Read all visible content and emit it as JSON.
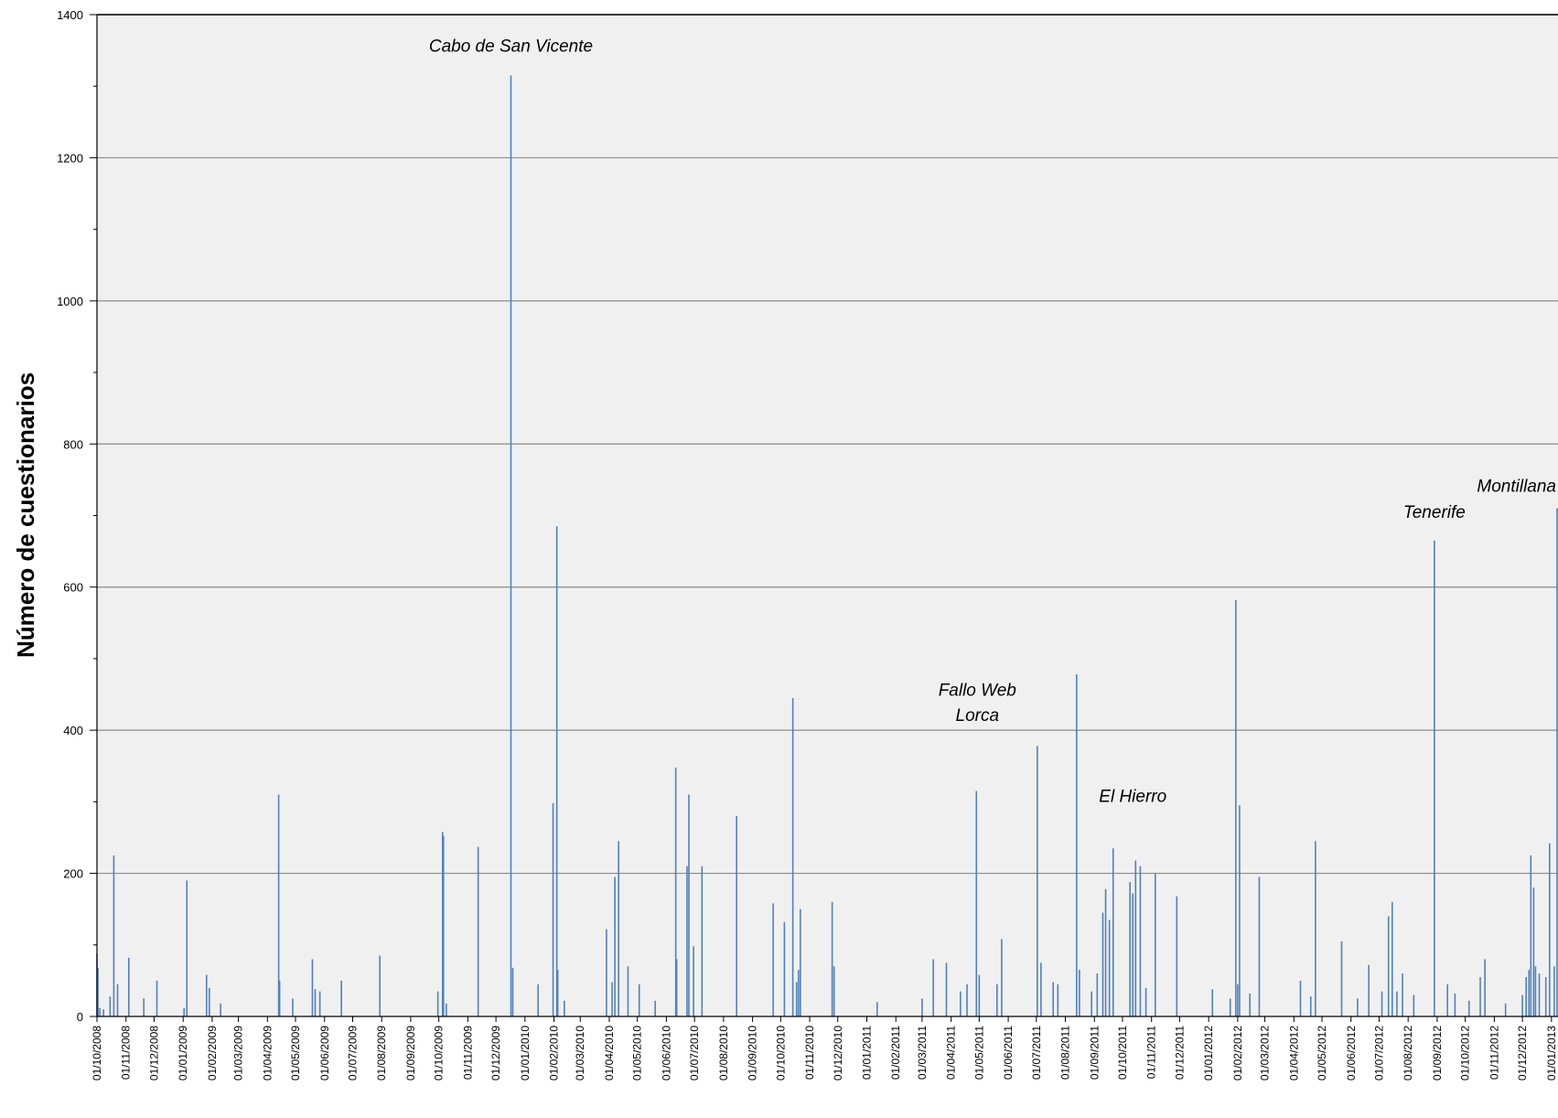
{
  "chart_data": {
    "type": "bar",
    "title": "",
    "xlabel": "",
    "ylabel": "Número de cuestionarios",
    "ylim": [
      0,
      1400
    ],
    "yticks": [
      0,
      200,
      400,
      600,
      800,
      1000,
      1200,
      1400
    ],
    "grid": true,
    "colors": {
      "bar": "#4f81bd",
      "plot_bg": "#f0f0f0",
      "grid": "#8c8c8c"
    },
    "x_tick_labels": [
      "01/10/2008",
      "01/11/2008",
      "01/12/2008",
      "01/01/2009",
      "01/02/2009",
      "01/03/2009",
      "01/04/2009",
      "01/05/2009",
      "01/06/2009",
      "01/07/2009",
      "01/08/2009",
      "01/09/2009",
      "01/10/2009",
      "01/11/2009",
      "01/12/2009",
      "01/01/2010",
      "01/02/2010",
      "01/03/2010",
      "01/04/2010",
      "01/05/2010",
      "01/06/2010",
      "01/07/2010",
      "01/08/2010",
      "01/09/2010",
      "01/10/2010",
      "01/11/2010",
      "01/12/2010",
      "01/01/2011",
      "01/02/2011",
      "01/03/2011",
      "01/04/2011",
      "01/05/2011",
      "01/06/2011",
      "01/07/2011",
      "01/08/2011",
      "01/09/2011",
      "01/10/2011",
      "01/11/2011",
      "01/12/2011",
      "01/01/2012",
      "01/02/2012",
      "01/03/2012",
      "01/04/2012",
      "01/05/2012",
      "01/06/2012",
      "01/07/2012",
      "01/08/2012",
      "01/09/2012",
      "01/10/2012",
      "01/11/2012",
      "01/12/2012",
      "01/01/2013"
    ],
    "x_domain": [
      "2008-10-01",
      "2013-01-08"
    ],
    "series": [
      {
        "values": [
          [
            "2008-10-01",
            88
          ],
          [
            "2008-10-02",
            68
          ],
          [
            "2008-10-04",
            12
          ],
          [
            "2008-10-08",
            10
          ],
          [
            "2008-10-15",
            28
          ],
          [
            "2008-10-19",
            225
          ],
          [
            "2008-10-23",
            45
          ],
          [
            "2008-11-04",
            82
          ],
          [
            "2008-11-20",
            25
          ],
          [
            "2008-12-04",
            50
          ],
          [
            "2009-01-02",
            12
          ],
          [
            "2009-01-05",
            190
          ],
          [
            "2009-01-26",
            58
          ],
          [
            "2009-01-29",
            40
          ],
          [
            "2009-02-10",
            18
          ],
          [
            "2009-04-13",
            310
          ],
          [
            "2009-04-14",
            50
          ],
          [
            "2009-04-28",
            25
          ],
          [
            "2009-05-19",
            80
          ],
          [
            "2009-05-22",
            38
          ],
          [
            "2009-05-27",
            35
          ],
          [
            "2009-06-19",
            50
          ],
          [
            "2009-07-30",
            85
          ],
          [
            "2009-09-30",
            35
          ],
          [
            "2009-10-05",
            258
          ],
          [
            "2009-10-06",
            252
          ],
          [
            "2009-10-09",
            18
          ],
          [
            "2009-11-12",
            237
          ],
          [
            "2009-12-17",
            1315
          ],
          [
            "2009-12-19",
            68
          ],
          [
            "2010-01-15",
            45
          ],
          [
            "2010-01-31",
            298
          ],
          [
            "2010-02-04",
            685
          ],
          [
            "2010-02-05",
            65
          ],
          [
            "2010-02-12",
            22
          ],
          [
            "2010-03-29",
            122
          ],
          [
            "2010-04-04",
            48
          ],
          [
            "2010-04-07",
            195
          ],
          [
            "2010-04-11",
            245
          ],
          [
            "2010-04-21",
            70
          ],
          [
            "2010-05-03",
            45
          ],
          [
            "2010-05-20",
            22
          ],
          [
            "2010-06-11",
            348
          ],
          [
            "2010-06-12",
            80
          ],
          [
            "2010-06-23",
            210
          ],
          [
            "2010-06-25",
            310
          ],
          [
            "2010-06-30",
            98
          ],
          [
            "2010-07-09",
            210
          ],
          [
            "2010-08-15",
            280
          ],
          [
            "2010-09-23",
            158
          ],
          [
            "2010-10-05",
            132
          ],
          [
            "2010-10-14",
            445
          ],
          [
            "2010-10-18",
            48
          ],
          [
            "2010-10-20",
            65
          ],
          [
            "2010-10-22",
            150
          ],
          [
            "2010-11-25",
            160
          ],
          [
            "2010-11-27",
            70
          ],
          [
            "2011-01-12",
            20
          ],
          [
            "2011-03-01",
            25
          ],
          [
            "2011-03-13",
            80
          ],
          [
            "2011-03-27",
            75
          ],
          [
            "2011-04-11",
            35
          ],
          [
            "2011-04-18",
            45
          ],
          [
            "2011-04-28",
            315
          ],
          [
            "2011-05-01",
            58
          ],
          [
            "2011-05-20",
            45
          ],
          [
            "2011-05-25",
            108
          ],
          [
            "2011-07-02",
            378
          ],
          [
            "2011-07-06",
            75
          ],
          [
            "2011-07-19",
            48
          ],
          [
            "2011-07-24",
            45
          ],
          [
            "2011-08-13",
            478
          ],
          [
            "2011-08-16",
            65
          ],
          [
            "2011-08-29",
            35
          ],
          [
            "2011-09-04",
            60
          ],
          [
            "2011-09-10",
            145
          ],
          [
            "2011-09-13",
            178
          ],
          [
            "2011-09-17",
            135
          ],
          [
            "2011-09-21",
            235
          ],
          [
            "2011-10-09",
            188
          ],
          [
            "2011-10-12",
            172
          ],
          [
            "2011-10-15",
            218
          ],
          [
            "2011-10-20",
            210
          ],
          [
            "2011-10-26",
            40
          ],
          [
            "2011-11-05",
            200
          ],
          [
            "2011-11-28",
            168
          ],
          [
            "2012-01-05",
            38
          ],
          [
            "2012-01-24",
            25
          ],
          [
            "2012-01-30",
            582
          ],
          [
            "2012-02-01",
            45
          ],
          [
            "2012-02-03",
            295
          ],
          [
            "2012-02-14",
            32
          ],
          [
            "2012-02-24",
            195
          ],
          [
            "2012-04-08",
            50
          ],
          [
            "2012-04-19",
            28
          ],
          [
            "2012-04-24",
            245
          ],
          [
            "2012-05-22",
            105
          ],
          [
            "2012-06-08",
            25
          ],
          [
            "2012-06-20",
            72
          ],
          [
            "2012-07-04",
            35
          ],
          [
            "2012-07-11",
            140
          ],
          [
            "2012-07-15",
            160
          ],
          [
            "2012-07-20",
            35
          ],
          [
            "2012-07-26",
            60
          ],
          [
            "2012-08-07",
            30
          ],
          [
            "2012-08-29",
            665
          ],
          [
            "2012-09-12",
            45
          ],
          [
            "2012-09-20",
            32
          ],
          [
            "2012-10-05",
            22
          ],
          [
            "2012-10-17",
            55
          ],
          [
            "2012-10-22",
            80
          ],
          [
            "2012-11-13",
            18
          ],
          [
            "2012-12-01",
            30
          ],
          [
            "2012-12-05",
            55
          ],
          [
            "2012-12-08",
            65
          ],
          [
            "2012-12-10",
            225
          ],
          [
            "2012-12-13",
            180
          ],
          [
            "2012-12-15",
            70
          ],
          [
            "2012-12-19",
            60
          ],
          [
            "2012-12-26",
            55
          ],
          [
            "2012-12-30",
            242
          ],
          [
            "2013-01-04",
            70
          ],
          [
            "2013-01-07",
            710
          ]
        ]
      }
    ],
    "annotations": [
      {
        "text": "Cabo de San Vicente",
        "x": "2009-12-17",
        "y": 1348
      },
      {
        "text": "Fallo Web",
        "x": "2011-04-29",
        "y": 448
      },
      {
        "text": "Lorca",
        "x": "2011-04-29",
        "y": 413
      },
      {
        "text": "El Hierro",
        "x": "2011-10-12",
        "y": 300
      },
      {
        "text": "Tenerife",
        "x": "2012-08-29",
        "y": 697
      },
      {
        "text": "Montillana",
        "x": "2013-01-03",
        "y": 733
      }
    ]
  }
}
